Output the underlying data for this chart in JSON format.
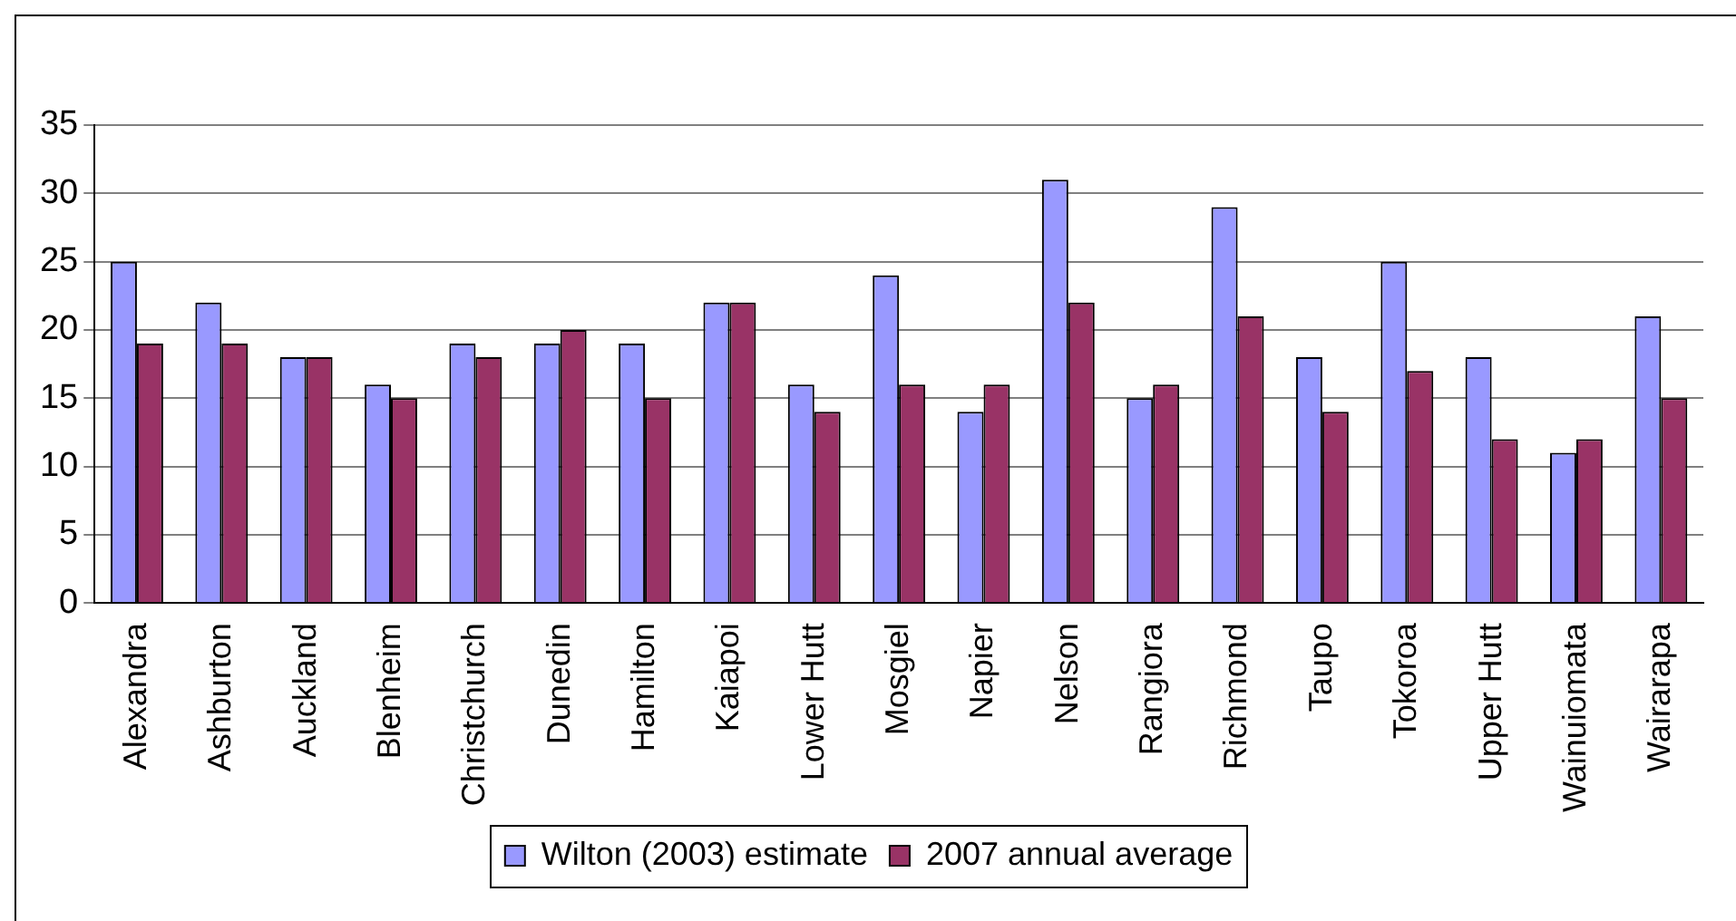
{
  "chart_data": {
    "type": "bar",
    "categories": [
      "Alexandra",
      "Ashburton",
      "Auckland",
      "Blenheim",
      "Christchurch",
      "Dunedin",
      "Hamilton",
      "Kaiapoi",
      "Lower Hutt",
      "Mosgiel",
      "Napier",
      "Nelson",
      "Rangiora",
      "Richmond",
      "Taupo",
      "Tokoroa",
      "Upper Hutt",
      "Wainuiomata",
      "Wairarapa"
    ],
    "series": [
      {
        "name": "Wilton (2003) estimate",
        "color": "#9999ff",
        "values": [
          25,
          22,
          18,
          16,
          19,
          19,
          19,
          22,
          16,
          24,
          14,
          31,
          15,
          29,
          18,
          25,
          18,
          11,
          21
        ]
      },
      {
        "name": "2007 annual average",
        "color": "#993366",
        "values": [
          19,
          19,
          18,
          15,
          18,
          20,
          15,
          22,
          14,
          16,
          16,
          22,
          16,
          21,
          14,
          17,
          12,
          12,
          15
        ]
      }
    ],
    "ylim": [
      0,
      35
    ],
    "yticks": [
      0,
      5,
      10,
      15,
      20,
      25,
      30,
      35
    ],
    "grid": "y",
    "legend": "bottom"
  }
}
